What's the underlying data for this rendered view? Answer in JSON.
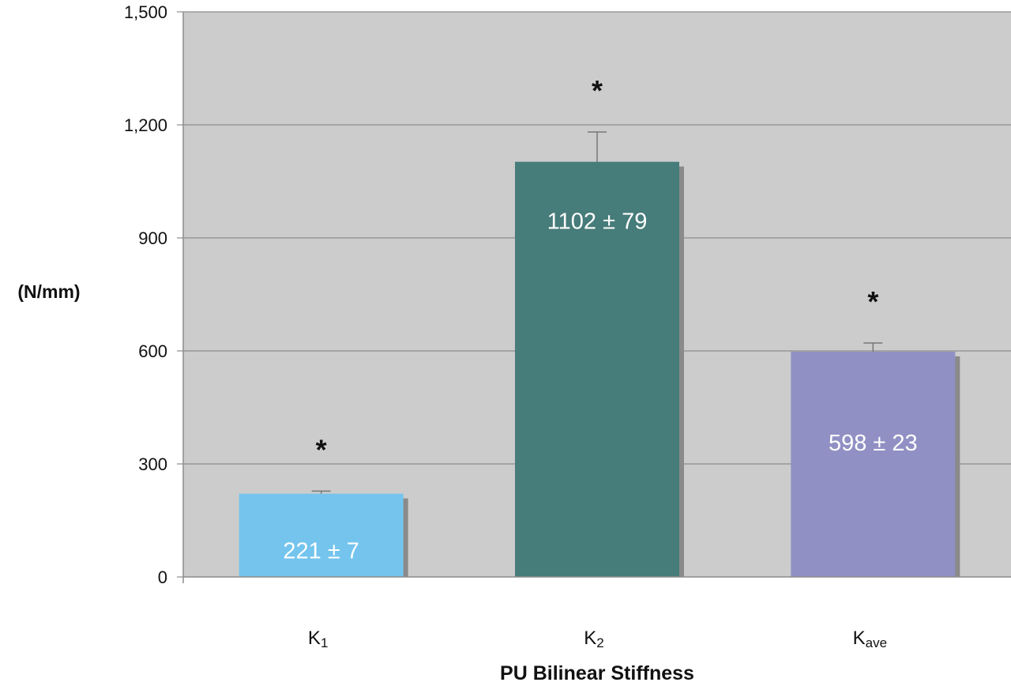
{
  "chart_data": {
    "type": "bar",
    "categories": [
      {
        "base": "K",
        "sub": "1"
      },
      {
        "base": "K",
        "sub": "2"
      },
      {
        "base": "K",
        "sub": "ave"
      }
    ],
    "values": [
      221,
      1102,
      598
    ],
    "errors": [
      7,
      79,
      23
    ],
    "data_labels": [
      "221 ± 7",
      "1102 ± 79",
      "598 ± 23"
    ],
    "significance_marks": [
      "*",
      "*",
      "*"
    ],
    "colors": [
      "#74c4ee",
      "#467c7a",
      "#9090c4"
    ],
    "xlabel": "PU Bilinear Stiffness",
    "ylabel": "(N/mm)",
    "ylim": [
      0,
      1500
    ],
    "yticks": [
      0,
      300,
      600,
      900,
      1200,
      1500
    ],
    "ytick_labels": [
      "0",
      "300",
      "600",
      "900",
      "1,200",
      "1,500"
    ],
    "grid": true,
    "plot_background": "#cccccc"
  }
}
